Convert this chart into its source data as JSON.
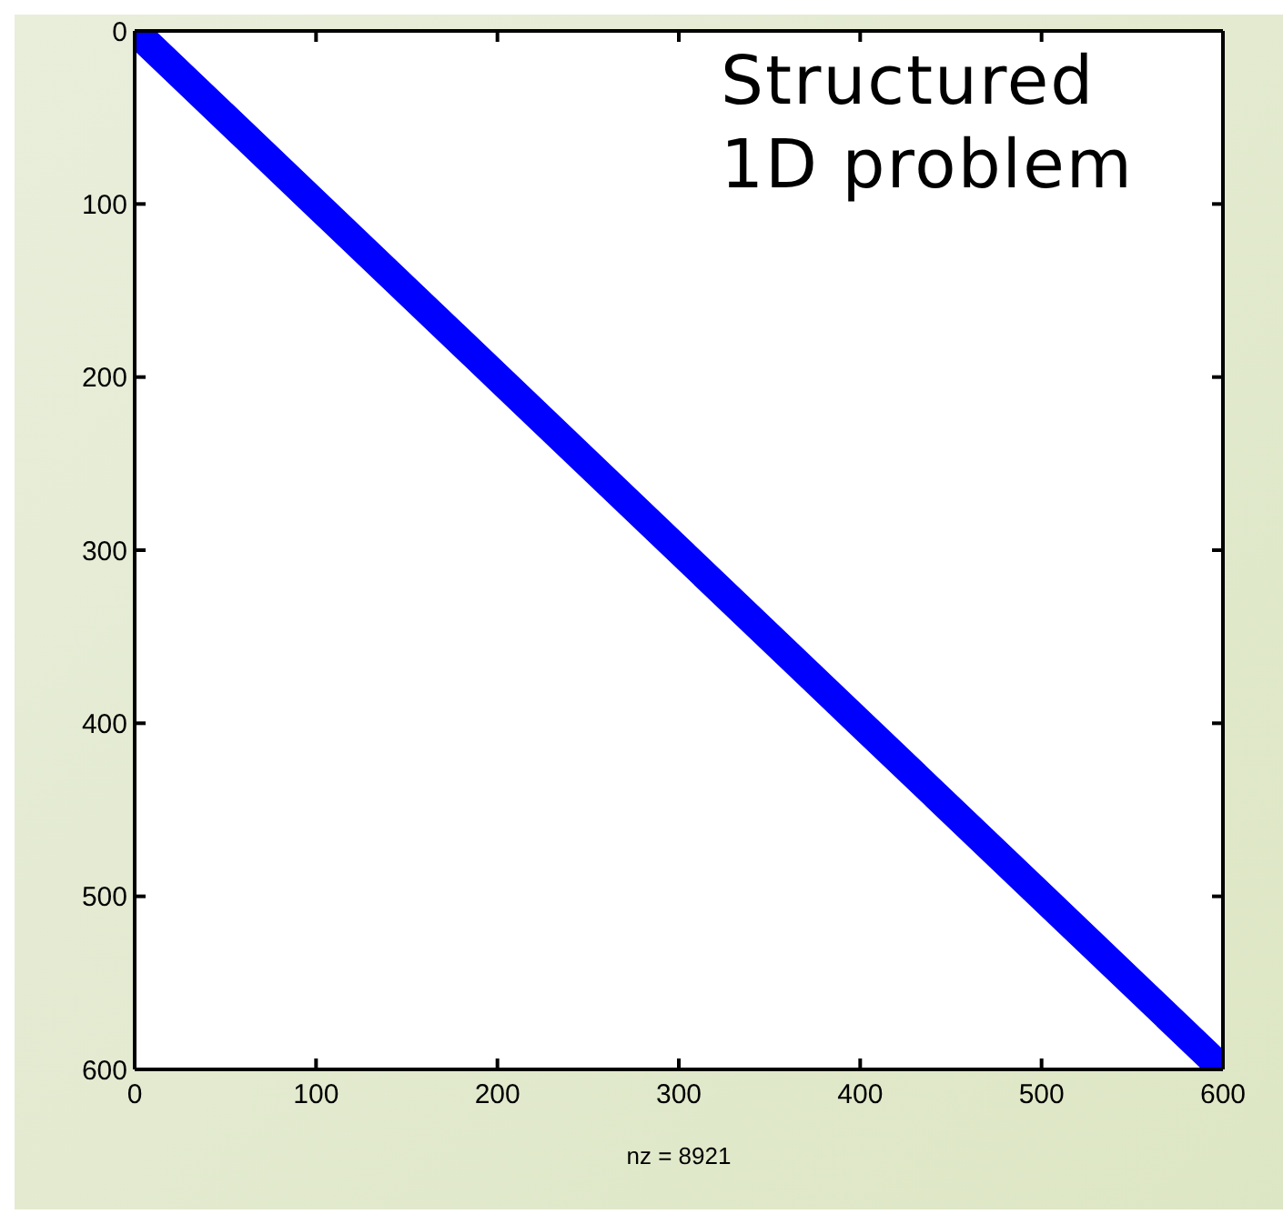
{
  "chart_data": {
    "type": "line",
    "xlabel": "nz = 8921",
    "annotations": [
      "Structured\n1D problem"
    ],
    "x": [
      0,
      100,
      200,
      300,
      400,
      500,
      600
    ],
    "series": [
      {
        "color": "#0000ff",
        "values": [
          0,
          100,
          200,
          300,
          400,
          500,
          600
        ]
      }
    ],
    "xlim": [
      0,
      600
    ],
    "ylim": [
      600,
      0
    ],
    "xticks": [
      0,
      100,
      200,
      300,
      400,
      500,
      600
    ],
    "yticks": [
      0,
      100,
      200,
      300,
      400,
      500,
      600
    ],
    "marker": "none"
  }
}
